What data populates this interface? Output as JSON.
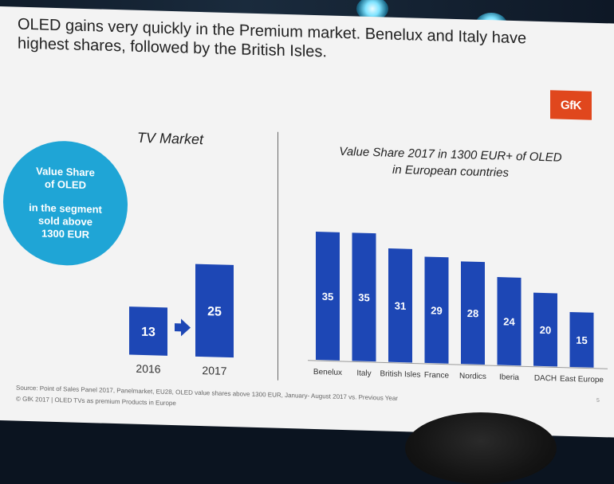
{
  "headline": {
    "line1": "OLED gains very quickly in the Premium market. Benelux and Italy have",
    "line2": "highest shares, followed by the British Isles."
  },
  "logo": "GfK",
  "circle": {
    "line1": "Value Share",
    "line2": "of OLED",
    "line3": "in the segment",
    "line4": "sold above",
    "line5": "1300 EUR"
  },
  "tv_panel": {
    "title": "TV Market"
  },
  "value_panel": {
    "title_line1": "Value Share 2017 in 1300 EUR+ of OLED",
    "title_line2": "in European countries"
  },
  "footer": {
    "source": "Source: Point of Sales Panel 2017, Panelmarket, EU28, OLED value shares above 1300 EUR, January- August 2017 vs. Previous Year",
    "copyright": "© GfK 2017 | OLED TVs as premium Products in Europe",
    "page": "5"
  },
  "colors": {
    "bar": "#1d47b5",
    "circle": "#1fa5d6",
    "logo": "#e0471d",
    "arrow": "#1d47b5"
  },
  "chart_data": [
    {
      "type": "bar",
      "title": "TV Market",
      "categories": [
        "2016",
        "2017"
      ],
      "values": [
        13,
        25
      ],
      "ylim": [
        0,
        36
      ],
      "annotations": [
        "arrow-right between bars"
      ]
    },
    {
      "type": "bar",
      "title": "Value Share 2017 in 1300 EUR+ of OLED in European countries",
      "categories": [
        "Benelux",
        "Italy",
        "British Isles",
        "France",
        "Nordics",
        "Iberia",
        "DACH",
        "East Europe"
      ],
      "values": [
        35,
        35,
        31,
        29,
        28,
        24,
        20,
        15
      ],
      "ylim": [
        0,
        36
      ],
      "grid": false,
      "legend": "none"
    }
  ]
}
